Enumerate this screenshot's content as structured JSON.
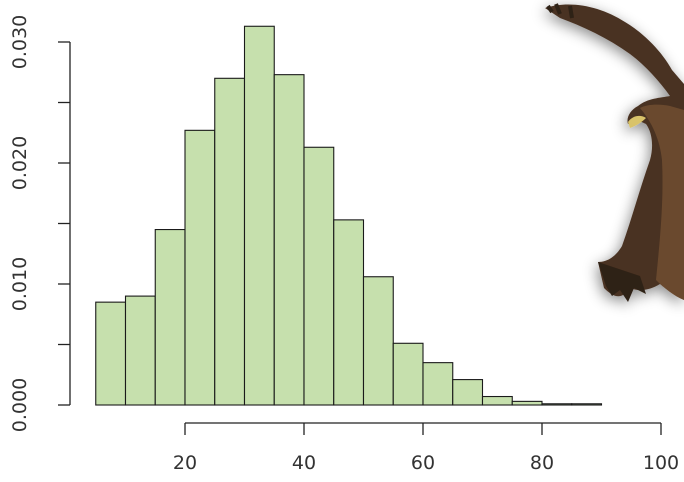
{
  "chart_data": {
    "type": "bar",
    "subtype": "histogram",
    "title": "",
    "xlabel": "",
    "ylabel": "",
    "bin_width": 5,
    "bins": [
      {
        "x0": 5,
        "x1": 10,
        "density": 0.0085
      },
      {
        "x0": 10,
        "x1": 15,
        "density": 0.009
      },
      {
        "x0": 15,
        "x1": 20,
        "density": 0.0145
      },
      {
        "x0": 20,
        "x1": 25,
        "density": 0.0227
      },
      {
        "x0": 25,
        "x1": 30,
        "density": 0.027
      },
      {
        "x0": 30,
        "x1": 35,
        "density": 0.0313
      },
      {
        "x0": 35,
        "x1": 40,
        "density": 0.0273
      },
      {
        "x0": 40,
        "x1": 45,
        "density": 0.0213
      },
      {
        "x0": 45,
        "x1": 50,
        "density": 0.0153
      },
      {
        "x0": 50,
        "x1": 55,
        "density": 0.0106
      },
      {
        "x0": 55,
        "x1": 60,
        "density": 0.0051
      },
      {
        "x0": 60,
        "x1": 65,
        "density": 0.0035
      },
      {
        "x0": 65,
        "x1": 70,
        "density": 0.0021
      },
      {
        "x0": 70,
        "x1": 75,
        "density": 0.0007
      },
      {
        "x0": 75,
        "x1": 80,
        "density": 0.0003
      },
      {
        "x0": 80,
        "x1": 85,
        "density": 0.0001
      },
      {
        "x0": 85,
        "x1": 90,
        "density": 0.0001
      }
    ],
    "xlim": [
      5,
      100
    ],
    "ylim": [
      0,
      0.0335
    ],
    "x_ticks": [
      20,
      40,
      60,
      80,
      100
    ],
    "x_tick_labels": [
      "20",
      "40",
      "60",
      "80",
      "100"
    ],
    "y_ticks": [
      0,
      0.005,
      0.01,
      0.015,
      0.02,
      0.025,
      0.03
    ],
    "y_tick_labels": [
      "0.000",
      "",
      "0.010",
      "",
      "0.020",
      "",
      "0.030"
    ],
    "grid": false,
    "legend": "none",
    "colors": {
      "bar_fill": "#c6e0ad",
      "bar_stroke": "#1a1a1a",
      "axis": "#222222",
      "text": "#333333"
    }
  },
  "decoration": {
    "image": "eagle-in-flight"
  }
}
